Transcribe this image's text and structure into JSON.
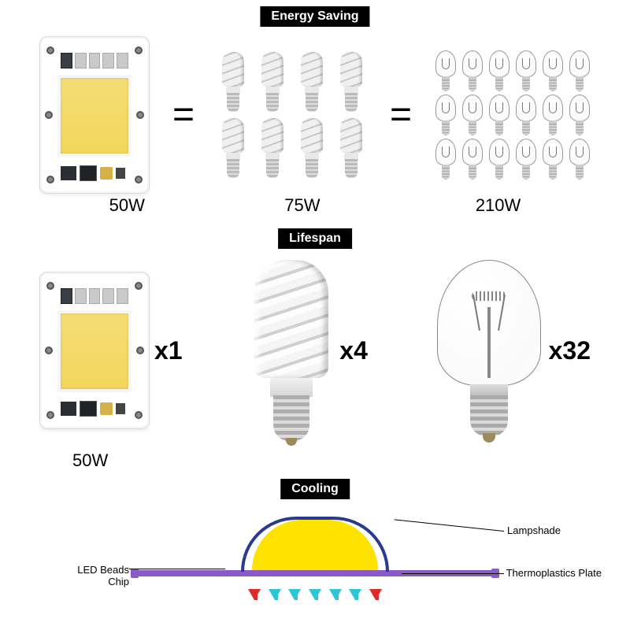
{
  "sections": {
    "energy": {
      "title": "Energy Saving",
      "equals": "=",
      "led_label": "50W",
      "cfl_label": "75W",
      "inc_label": "210W",
      "cfl_count": 8,
      "cfl_cols": 4,
      "inc_count": 18,
      "inc_cols": 6
    },
    "lifespan": {
      "title": "Lifespan",
      "led_label": "50W",
      "led_mult": "x1",
      "cfl_mult": "x4",
      "inc_mult": "x32"
    },
    "cooling": {
      "title": "Cooling",
      "labels": {
        "lampshade": "Lampshade",
        "chip": "LED Beads Chip",
        "plate": "Thermoplastics Plate"
      },
      "colors": {
        "shade_border": "#293a8f",
        "chip_fill": "#ffe300",
        "plate_fill": "#8b59c9",
        "arrow_red": "#e02929",
        "arrow_cyan": "#2dc6d6"
      },
      "arrow_pattern": [
        "red",
        "cyan",
        "cyan",
        "cyan",
        "cyan",
        "cyan",
        "red"
      ]
    }
  },
  "style": {
    "background": "#ffffff",
    "title_bg": "#000000",
    "title_fg": "#ffffff",
    "label_fontsize_pt": 16,
    "mult_fontsize_pt": 24,
    "title_fontsize_pt": 12,
    "font_family": "Arial",
    "led_emit_color": "#f2d65d"
  }
}
